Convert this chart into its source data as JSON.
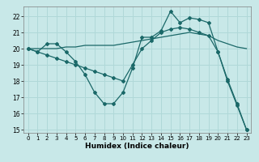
{
  "xlabel": "Humidex (Indice chaleur)",
  "bg_color": "#c8e8e8",
  "grid_color": "#b0d8d8",
  "line_color": "#1a6868",
  "xlim": [
    -0.5,
    23.5
  ],
  "ylim": [
    14.8,
    22.6
  ],
  "yticks": [
    15,
    16,
    17,
    18,
    19,
    20,
    21,
    22
  ],
  "xticks": [
    0,
    1,
    2,
    3,
    4,
    5,
    6,
    7,
    8,
    9,
    10,
    11,
    12,
    13,
    14,
    15,
    16,
    17,
    18,
    19,
    20,
    21,
    22,
    23
  ],
  "line1_x": [
    0,
    1,
    2,
    3,
    4,
    5,
    6,
    7,
    8,
    9,
    10,
    11,
    12,
    13,
    14,
    15,
    16,
    17,
    18,
    19,
    20,
    21,
    22,
    23
  ],
  "line1_y": [
    20.0,
    19.8,
    20.3,
    20.3,
    19.8,
    19.2,
    18.4,
    17.3,
    16.6,
    16.6,
    17.3,
    18.8,
    20.7,
    20.7,
    21.1,
    22.3,
    21.6,
    21.9,
    21.8,
    21.6,
    19.8,
    18.1,
    16.6,
    15.0
  ],
  "line2_x": [
    0,
    1,
    2,
    3,
    4,
    5,
    6,
    7,
    8,
    9,
    10,
    11,
    12,
    13,
    14,
    15,
    16,
    17,
    18,
    19,
    20,
    21,
    22,
    23
  ],
  "line2_y": [
    20.0,
    20.0,
    20.0,
    20.0,
    20.1,
    20.1,
    20.2,
    20.2,
    20.2,
    20.2,
    20.3,
    20.4,
    20.5,
    20.6,
    20.7,
    20.8,
    20.9,
    21.0,
    20.9,
    20.8,
    20.5,
    20.3,
    20.1,
    20.0
  ],
  "line3_x": [
    0,
    1,
    2,
    3,
    4,
    5,
    6,
    7,
    8,
    9,
    10,
    11,
    12,
    13,
    14,
    15,
    16,
    17,
    18,
    19,
    20,
    21,
    22,
    23
  ],
  "line3_y": [
    20.0,
    19.8,
    19.6,
    19.4,
    19.2,
    19.0,
    18.8,
    18.6,
    18.4,
    18.2,
    18.0,
    19.0,
    20.0,
    20.5,
    21.0,
    21.2,
    21.3,
    21.2,
    21.0,
    20.8,
    19.8,
    18.0,
    16.5,
    15.0
  ]
}
